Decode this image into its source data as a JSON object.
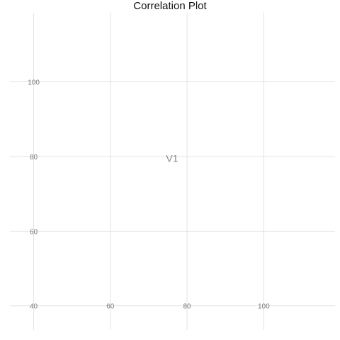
{
  "chart_data": {
    "type": "scatter",
    "title": "Correlation Plot",
    "xlabel": "",
    "ylabel": "",
    "x_ticks": [
      60,
      80,
      100
    ],
    "y_ticks": [
      40,
      60,
      80,
      100
    ],
    "origin_tick_label": "40",
    "xlim": [
      33.8,
      118.6
    ],
    "ylim": [
      33.5,
      118.5
    ],
    "grid": true,
    "series": [],
    "annotations": [
      {
        "text": "V1",
        "x": 76.1,
        "y": 79.5
      }
    ],
    "colors": {
      "grid": "#e3e3e3",
      "tick_label": "#7a7a7a",
      "annotation": "#8a8a8a",
      "title": "#111111"
    }
  }
}
